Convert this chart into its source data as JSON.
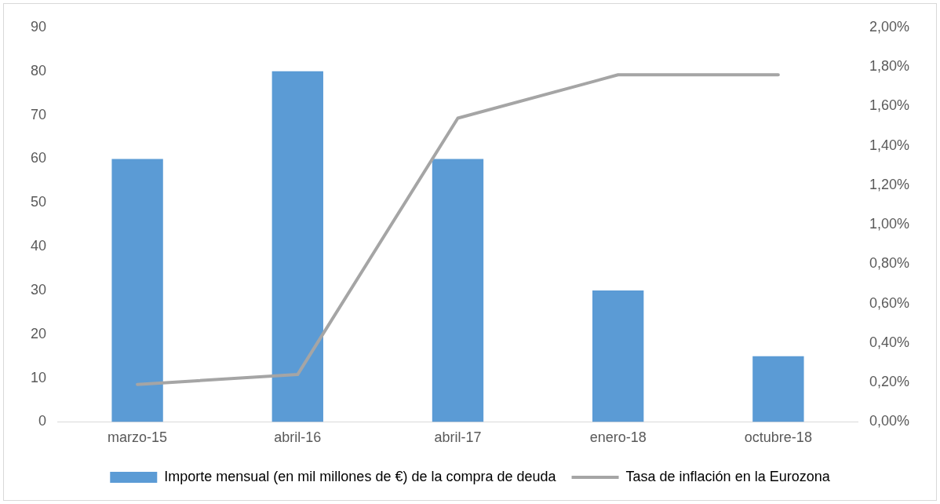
{
  "chart_data": {
    "type": "bar",
    "categories": [
      "marzo-15",
      "abril-16",
      "abril-17",
      "enero-18",
      "octubre-18"
    ],
    "series": [
      {
        "name": "Importe mensual (en mil millones de €) de la compra de deuda",
        "color": "#5b9bd5",
        "values": [
          60,
          80,
          60,
          30,
          15
        ]
      },
      {
        "name": "Tasa de inflación en la Eurozona",
        "type": "line",
        "axis": "y2",
        "color": "#a5a5a5",
        "values": [
          0.19,
          0.24,
          1.54,
          1.76,
          1.76
        ]
      }
    ],
    "ylim": [
      0,
      90
    ],
    "yticks": [
      0,
      10,
      20,
      30,
      40,
      50,
      60,
      70,
      80,
      90
    ],
    "y2lim": [
      0,
      2
    ],
    "y2ticks": [
      {
        "value": 0,
        "label": "0,00%"
      },
      {
        "value": 0.2,
        "label": "0,20%"
      },
      {
        "value": 0.4,
        "label": "0,40%"
      },
      {
        "value": 0.6,
        "label": "0,60%"
      },
      {
        "value": 0.8,
        "label": "0,80%"
      },
      {
        "value": 1,
        "label": "1,00%"
      },
      {
        "value": 1.2,
        "label": "1,20%"
      },
      {
        "value": 1.4,
        "label": "1,40%"
      },
      {
        "value": 1.6,
        "label": "1,60%"
      },
      {
        "value": 1.8,
        "label": "1,80%"
      },
      {
        "value": 2,
        "label": "2,00%"
      }
    ],
    "grid": false,
    "legend": "bottom",
    "marker": "none",
    "line_style": "solid"
  }
}
